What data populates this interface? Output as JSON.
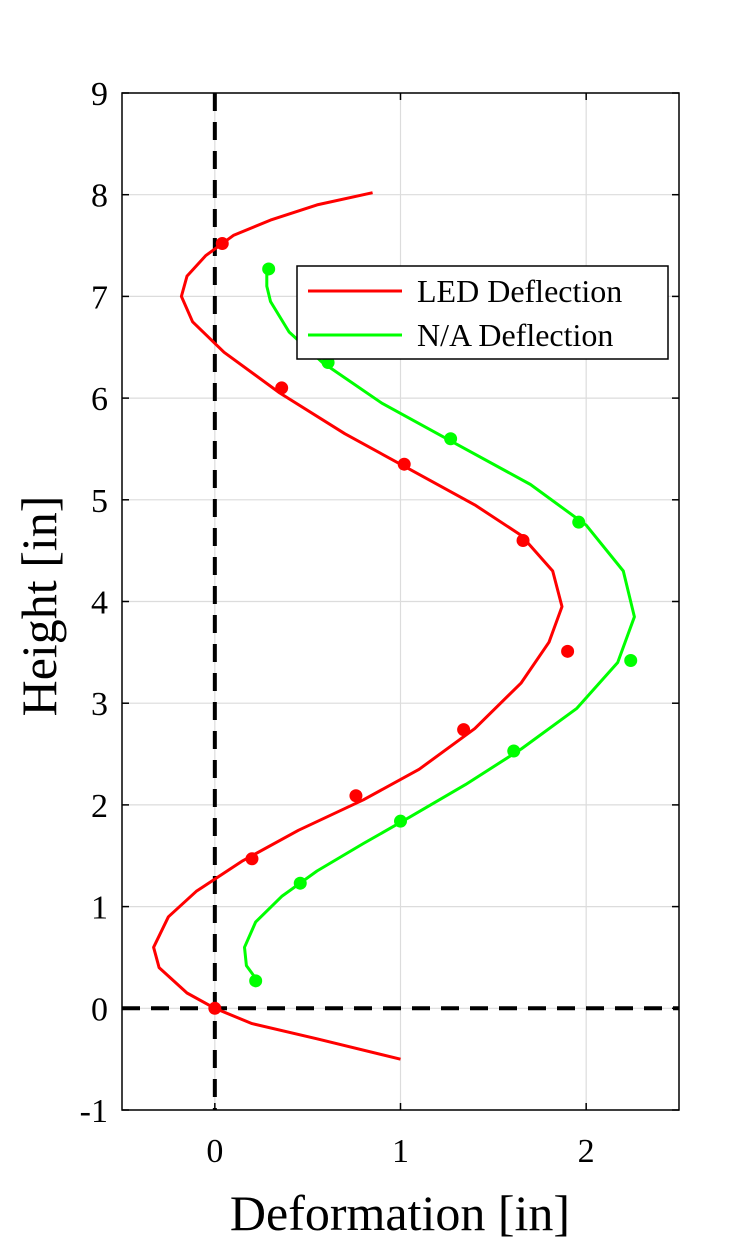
{
  "chart_data": {
    "type": "line",
    "xlabel": "Deformation [in]",
    "ylabel": "Height [in]",
    "xlim": [
      -0.5,
      2.5
    ],
    "ylim": [
      -1,
      9
    ],
    "xticks": [
      0,
      1,
      2
    ],
    "yticks": [
      -1,
      0,
      1,
      2,
      3,
      4,
      5,
      6,
      7,
      8,
      9
    ],
    "grid": true,
    "legend_position": "top-right",
    "reference_lines": [
      {
        "orientation": "vertical",
        "value": 0,
        "style": "dashed",
        "color": "#000000"
      },
      {
        "orientation": "horizontal",
        "value": 0,
        "style": "dashed",
        "color": "#000000"
      }
    ],
    "series": [
      {
        "name": "LED Deflection",
        "color": "#ff0000",
        "curve": [
          {
            "x": 1.0,
            "y": -0.5
          },
          {
            "x": 0.55,
            "y": -0.3
          },
          {
            "x": 0.2,
            "y": -0.15
          },
          {
            "x": 0.0,
            "y": 0.0
          },
          {
            "x": -0.15,
            "y": 0.15
          },
          {
            "x": -0.3,
            "y": 0.4
          },
          {
            "x": -0.33,
            "y": 0.6
          },
          {
            "x": -0.25,
            "y": 0.9
          },
          {
            "x": -0.1,
            "y": 1.15
          },
          {
            "x": 0.15,
            "y": 1.45
          },
          {
            "x": 0.45,
            "y": 1.75
          },
          {
            "x": 0.8,
            "y": 2.05
          },
          {
            "x": 1.1,
            "y": 2.35
          },
          {
            "x": 1.4,
            "y": 2.75
          },
          {
            "x": 1.65,
            "y": 3.2
          },
          {
            "x": 1.8,
            "y": 3.6
          },
          {
            "x": 1.87,
            "y": 3.95
          },
          {
            "x": 1.82,
            "y": 4.3
          },
          {
            "x": 1.65,
            "y": 4.65
          },
          {
            "x": 1.4,
            "y": 4.95
          },
          {
            "x": 1.05,
            "y": 5.3
          },
          {
            "x": 0.7,
            "y": 5.65
          },
          {
            "x": 0.35,
            "y": 6.05
          },
          {
            "x": 0.05,
            "y": 6.45
          },
          {
            "x": -0.12,
            "y": 6.75
          },
          {
            "x": -0.18,
            "y": 7.0
          },
          {
            "x": -0.15,
            "y": 7.2
          },
          {
            "x": -0.05,
            "y": 7.4
          },
          {
            "x": 0.1,
            "y": 7.6
          },
          {
            "x": 0.3,
            "y": 7.75
          },
          {
            "x": 0.55,
            "y": 7.9
          },
          {
            "x": 0.85,
            "y": 8.02
          }
        ],
        "points": [
          {
            "x": 0.0,
            "y": 0.0
          },
          {
            "x": 0.2,
            "y": 1.47
          },
          {
            "x": 0.76,
            "y": 2.09
          },
          {
            "x": 1.34,
            "y": 2.74
          },
          {
            "x": 1.9,
            "y": 3.51
          },
          {
            "x": 1.66,
            "y": 4.6
          },
          {
            "x": 1.02,
            "y": 5.35
          },
          {
            "x": 0.36,
            "y": 6.1
          },
          {
            "x": 0.04,
            "y": 7.52
          }
        ]
      },
      {
        "name": "N/A Deflection",
        "color": "#00ff00",
        "curve": [
          {
            "x": 0.23,
            "y": 0.27
          },
          {
            "x": 0.17,
            "y": 0.42
          },
          {
            "x": 0.16,
            "y": 0.6
          },
          {
            "x": 0.22,
            "y": 0.85
          },
          {
            "x": 0.36,
            "y": 1.1
          },
          {
            "x": 0.55,
            "y": 1.35
          },
          {
            "x": 0.8,
            "y": 1.62
          },
          {
            "x": 1.05,
            "y": 1.88
          },
          {
            "x": 1.35,
            "y": 2.2
          },
          {
            "x": 1.65,
            "y": 2.55
          },
          {
            "x": 1.95,
            "y": 2.95
          },
          {
            "x": 2.17,
            "y": 3.4
          },
          {
            "x": 2.26,
            "y": 3.85
          },
          {
            "x": 2.2,
            "y": 4.3
          },
          {
            "x": 2.0,
            "y": 4.75
          },
          {
            "x": 1.7,
            "y": 5.15
          },
          {
            "x": 1.3,
            "y": 5.55
          },
          {
            "x": 0.9,
            "y": 5.95
          },
          {
            "x": 0.58,
            "y": 6.35
          },
          {
            "x": 0.4,
            "y": 6.65
          },
          {
            "x": 0.3,
            "y": 6.95
          },
          {
            "x": 0.28,
            "y": 7.1
          },
          {
            "x": 0.28,
            "y": 7.27
          }
        ],
        "points": [
          {
            "x": 0.22,
            "y": 0.27
          },
          {
            "x": 0.46,
            "y": 1.23
          },
          {
            "x": 1.0,
            "y": 1.84
          },
          {
            "x": 1.61,
            "y": 2.53
          },
          {
            "x": 2.24,
            "y": 3.42
          },
          {
            "x": 1.96,
            "y": 4.78
          },
          {
            "x": 1.27,
            "y": 5.6
          },
          {
            "x": 0.61,
            "y": 6.35
          },
          {
            "x": 0.29,
            "y": 7.27
          }
        ]
      }
    ]
  }
}
